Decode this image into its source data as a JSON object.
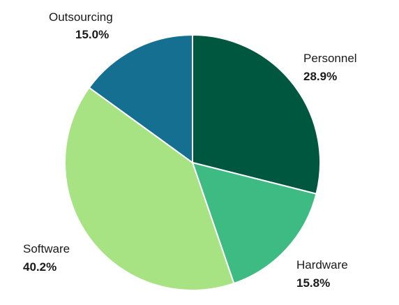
{
  "chart_data": {
    "type": "pie",
    "title": "",
    "start_angle_deg": 0,
    "direction": "clockwise",
    "slices": [
      {
        "label": "Personnel",
        "value": 28.9,
        "display": "28.9%",
        "color": "#00573f"
      },
      {
        "label": "Hardware",
        "value": 15.8,
        "display": "15.8%",
        "color": "#3dbb83"
      },
      {
        "label": "Software",
        "value": 40.2,
        "display": "40.2%",
        "color": "#a7e283"
      },
      {
        "label": "Outsourcing",
        "value": 15.0,
        "display": "15.0%",
        "color": "#156f91"
      }
    ],
    "legend": "none"
  }
}
